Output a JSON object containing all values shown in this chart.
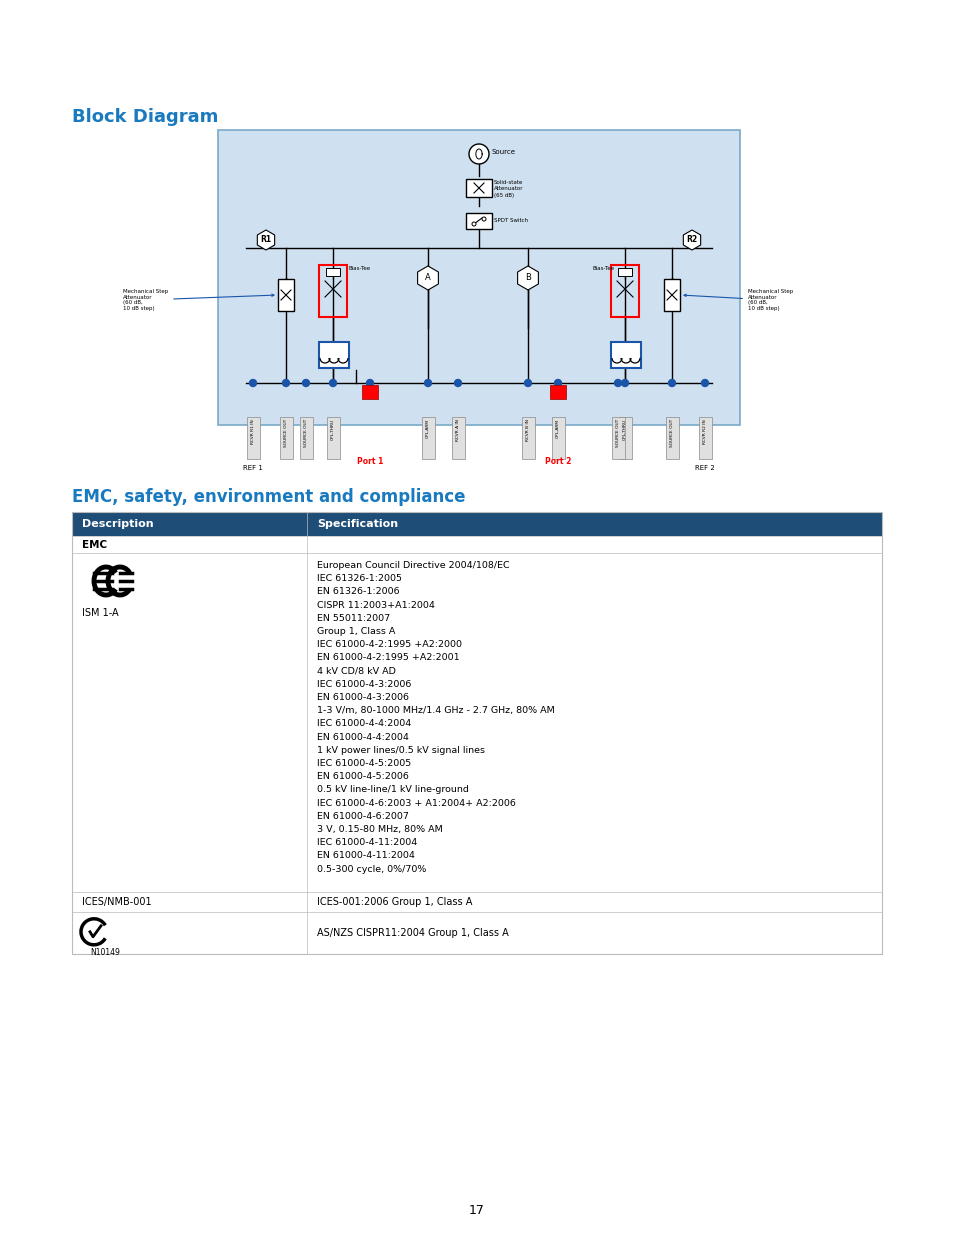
{
  "title_block_diagram": "Block Diagram",
  "title_emc": "EMC, safety, environment and compliance",
  "page_number": "17",
  "bg_color": "#ffffff",
  "title_color": "#1a7abf",
  "diagram_bg": "#cfe0f0",
  "diagram_border": "#7aaac8",
  "table_header_bg": "#1e4d78",
  "table_header_color": "#ffffff",
  "table_border": "#bbbbbb",
  "port1_color": "#cc0000",
  "port2_color": "#cc0000",
  "connector_color": "#1a55aa",
  "emc_section_label": "EMC",
  "desc_col_header": "Description",
  "spec_col_header": "Specification",
  "ices_label": "ICES/NMB-001",
  "ices_spec": "ICES-001:2006 Group 1, Class A",
  "ce_spec_lines": [
    "European Council Directive 2004/108/EC",
    "IEC 61326-1:2005",
    "EN 61326-1:2006",
    "CISPR 11:2003+A1:2004",
    "EN 55011:2007",
    "Group 1, Class A",
    "IEC 61000-4-2:1995 +A2:2000",
    "EN 61000-4-2:1995 +A2:2001",
    "4 kV CD/8 kV AD",
    "IEC 61000-4-3:2006",
    "EN 61000-4-3:2006",
    "1-3 V/m, 80-1000 MHz/1.4 GHz - 2.7 GHz, 80% AM",
    "IEC 61000-4-4:2004",
    "EN 61000-4-4:2004",
    "1 kV power lines/0.5 kV signal lines",
    "IEC 61000-4-5:2005",
    "EN 61000-4-5:2006",
    "0.5 kV line-line/1 kV line-ground",
    "IEC 61000-4-6:2003 + A1:2004+ A2:2006",
    "EN 61000-4-6:2007",
    "3 V, 0.15-80 MHz, 80% AM",
    "IEC 61000-4-11:2004",
    "EN 61000-4-11:2004",
    "0.5-300 cycle, 0%/70%"
  ],
  "c_tick_spec": "AS/NZS CISPR11:2004 Group 1, Class A",
  "c_tick_label": "N10149",
  "ce_ism_label": "ISM 1-A",
  "source_label": "Source",
  "solid_state_lines": [
    "Solid-state",
    "Attenuator",
    "(65 dB)"
  ],
  "spdt_label": "SPDT Switch",
  "r1_label": "R1",
  "r2_label": "R2",
  "mech_att_left": "Mechanical Step\nAttenuator\n(60 dB,\n10 dB step)",
  "mech_att_right": "Mechanical Step\nAttenuator\n(60 dB,\n10 dB step)",
  "bias_tee_label": "Bias-Tee",
  "port1_label": "Port 1",
  "port2_label": "Port 2",
  "ref1_label": "REF 1",
  "ref2_label": "REF 2",
  "a_label": "A",
  "b_label": "B"
}
